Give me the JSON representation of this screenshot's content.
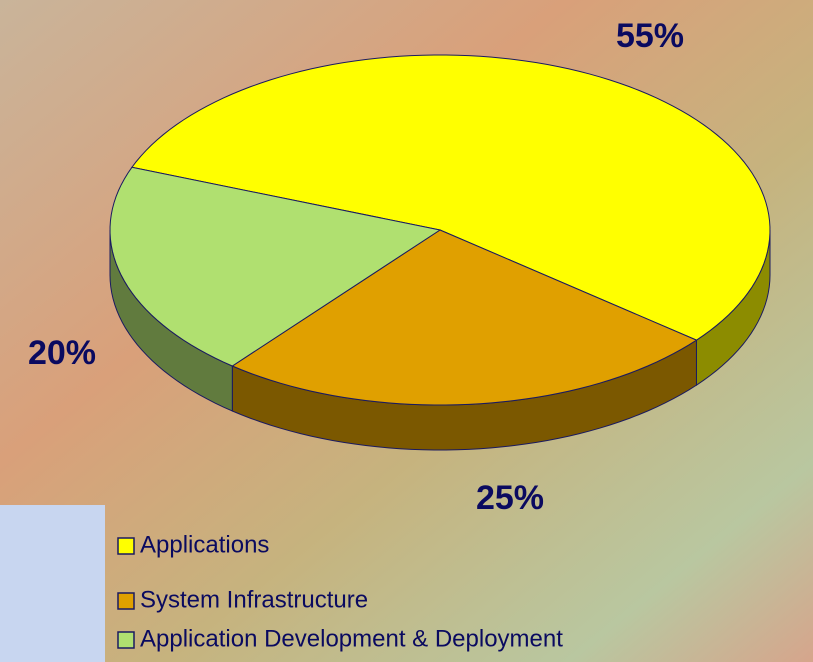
{
  "chart_data": {
    "type": "pie",
    "three_d": true,
    "categories": [
      "Applications",
      "System Infrastructure",
      "Application Development & Deployment"
    ],
    "values": [
      55,
      25,
      20
    ],
    "value_labels": [
      "55%",
      "25%",
      "20%"
    ],
    "colors": [
      "#ffff00",
      "#e0a000",
      "#b0e070"
    ],
    "legend": "bottom"
  }
}
